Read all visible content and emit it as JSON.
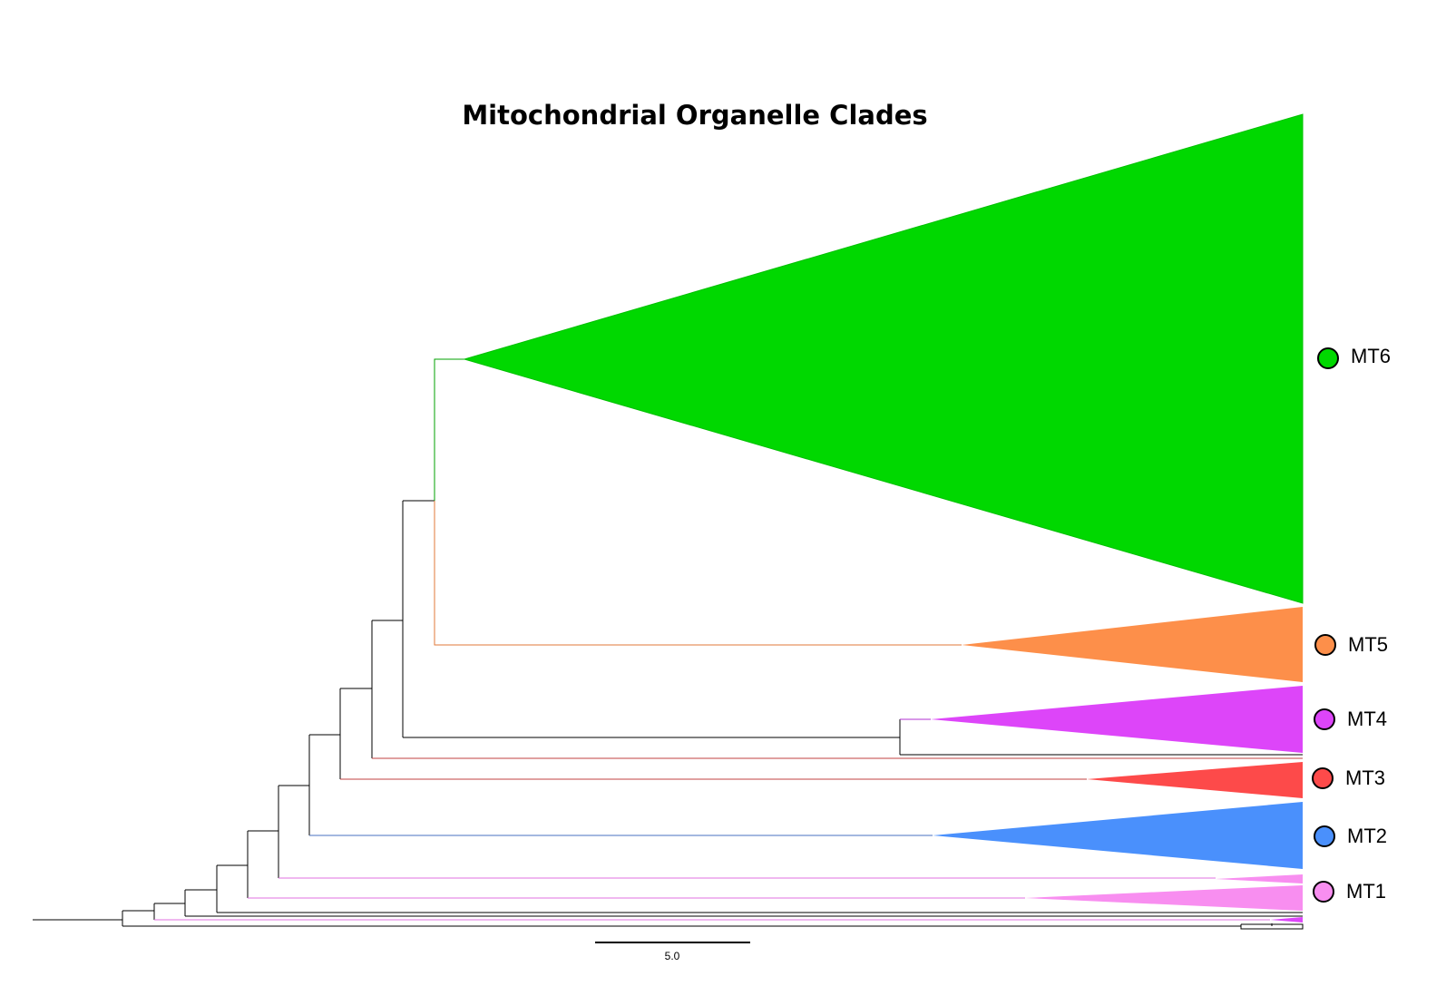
{
  "title": "Mitochondrial Organelle Clades",
  "scale_bar": {
    "label": "5.0"
  },
  "clades": [
    {
      "id": "mt6",
      "label": "MT6",
      "color": "#00d800"
    },
    {
      "id": "mt5",
      "label": "MT5",
      "color": "#fd8f4a"
    },
    {
      "id": "mt4",
      "label": "MT4",
      "color": "#dd45f9"
    },
    {
      "id": "mt3",
      "label": "MT3",
      "color": "#fd4a4a"
    },
    {
      "id": "mt2",
      "label": "MT2",
      "color": "#4a90fc"
    },
    {
      "id": "mt1",
      "label": "MT1",
      "color": "#f88ef0"
    }
  ]
}
